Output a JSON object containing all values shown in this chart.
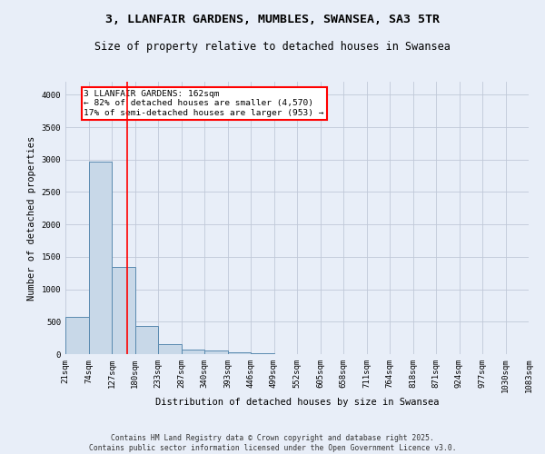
{
  "title_line1": "3, LLANFAIR GARDENS, MUMBLES, SWANSEA, SA3 5TR",
  "title_line2": "Size of property relative to detached houses in Swansea",
  "xlabel": "Distribution of detached houses by size in Swansea",
  "ylabel": "Number of detached properties",
  "bins": [
    "21sqm",
    "74sqm",
    "127sqm",
    "180sqm",
    "233sqm",
    "287sqm",
    "340sqm",
    "393sqm",
    "446sqm",
    "499sqm",
    "552sqm",
    "605sqm",
    "658sqm",
    "711sqm",
    "764sqm",
    "818sqm",
    "871sqm",
    "924sqm",
    "977sqm",
    "1030sqm",
    "1083sqm"
  ],
  "values": [
    570,
    2970,
    1340,
    430,
    150,
    75,
    50,
    30,
    10,
    0,
    0,
    0,
    0,
    0,
    0,
    0,
    0,
    0,
    0,
    0
  ],
  "bar_color": "#c8d8e8",
  "bar_edge_color": "#5a8ab0",
  "grid_color": "#c0c8d8",
  "background_color": "#e8eef8",
  "vline_x_index": 2.66,
  "vline_color": "red",
  "annotation_text": "3 LLANFAIR GARDENS: 162sqm\n← 82% of detached houses are smaller (4,570)\n17% of semi-detached houses are larger (953) →",
  "annotation_box_color": "white",
  "annotation_box_edge_color": "red",
  "ylim": [
    0,
    4200
  ],
  "yticks": [
    0,
    500,
    1000,
    1500,
    2000,
    2500,
    3000,
    3500,
    4000
  ],
  "footer_line1": "Contains HM Land Registry data © Crown copyright and database right 2025.",
  "footer_line2": "Contains public sector information licensed under the Open Government Licence v3.0.",
  "title_fontsize": 9.5,
  "subtitle_fontsize": 8.5,
  "axis_label_fontsize": 7.5,
  "tick_fontsize": 6.5,
  "annotation_fontsize": 6.8,
  "footer_fontsize": 5.8
}
